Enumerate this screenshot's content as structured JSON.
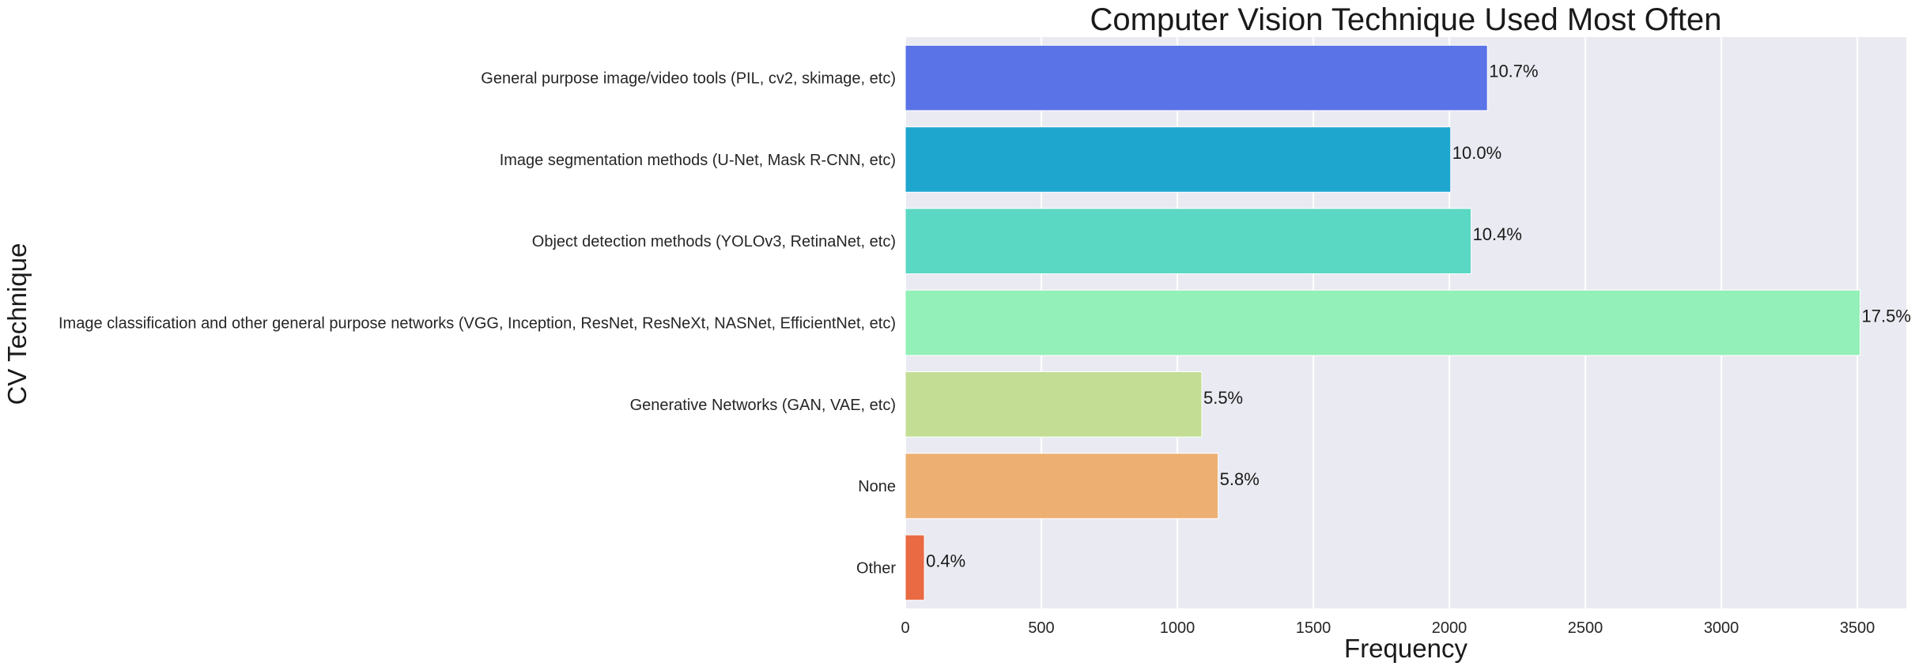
{
  "chart_data": {
    "type": "bar",
    "orientation": "horizontal",
    "title": "Computer Vision Technique Used Most Often",
    "xlabel": "Frequency",
    "ylabel": "CV Technique",
    "xlim": [
      0,
      3680
    ],
    "xticks": [
      0,
      500,
      1000,
      1500,
      2000,
      2500,
      3000,
      3500
    ],
    "grid": true,
    "categories": [
      "General purpose image/video tools (PIL, cv2, skimage, etc)",
      "Image segmentation methods (U-Net, Mask R-CNN, etc)",
      "Object detection methods (YOLOv3, RetinaNet, etc)",
      "Image classification and other general purpose networks (VGG, Inception, ResNet, ResNeXt, NASNet, EfficientNet, etc)",
      "Generative Networks (GAN, VAE, etc)",
      "None",
      "Other"
    ],
    "values": [
      2140,
      2005,
      2080,
      3510,
      1090,
      1150,
      70
    ],
    "data_labels": [
      "10.7%",
      "10.0%",
      "10.4%",
      "17.5%",
      "5.5%",
      "5.8%",
      "0.4%"
    ],
    "colors": [
      "#5a73e6",
      "#1fa6cf",
      "#5ad8c3",
      "#92f0b8",
      "#c3de94",
      "#edb072",
      "#e96a43"
    ],
    "background": "#eaeaf2"
  }
}
